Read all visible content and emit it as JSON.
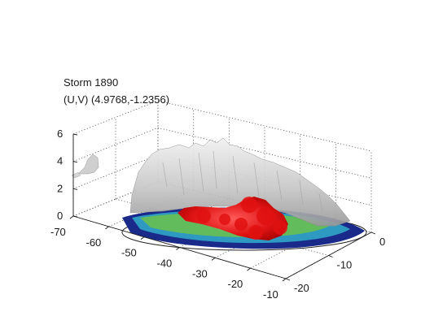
{
  "chart_data": {
    "type": "3d-isosurface",
    "title_lines": [
      "Storm 1890",
      "(U,V) (4.9768,-1.2356)"
    ],
    "z_ticks": [
      "0",
      "2",
      "4",
      "6"
    ],
    "x_ticks": [
      "-70",
      "-60",
      "-50",
      "-40",
      "-30",
      "-20",
      "-10"
    ],
    "y_ticks": [
      "0",
      "-10",
      "-20"
    ],
    "grid": true,
    "colors": {
      "isosurface": "#c8c8c8",
      "core": "#e01010",
      "base_outer": "#1a2a8a",
      "base_mid": "#2f9fc4",
      "base_inner": "#6cc24a",
      "axis": "#1a1a1a",
      "grid": "#555555"
    }
  }
}
